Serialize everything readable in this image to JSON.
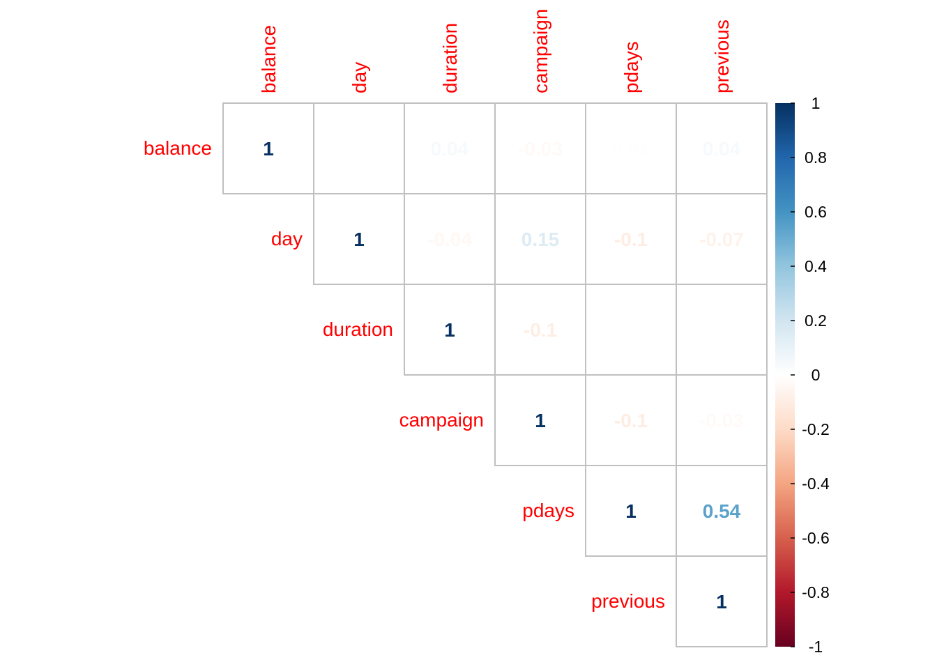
{
  "chart_data": {
    "type": "heatmap",
    "variables": [
      "balance",
      "day",
      "duration",
      "campaign",
      "pdays",
      "previous"
    ],
    "triangle": "upper",
    "matrix": [
      [
        1,
        0.0,
        0.04,
        -0.03,
        0.01,
        0.04
      ],
      [
        null,
        1,
        -0.04,
        0.15,
        -0.1,
        -0.07
      ],
      [
        null,
        null,
        1,
        -0.1,
        0.0,
        0.0
      ],
      [
        null,
        null,
        null,
        1,
        -0.1,
        -0.03
      ],
      [
        null,
        null,
        null,
        null,
        1,
        0.54
      ],
      [
        null,
        null,
        null,
        null,
        null,
        1
      ]
    ],
    "labels": [
      [
        "1",
        "0",
        "0.04",
        "-0.03",
        "0.01",
        "0.04"
      ],
      [
        null,
        "1",
        "-0.04",
        "0.15",
        "-0.1",
        "-0.07"
      ],
      [
        null,
        null,
        "1",
        "-0.1",
        "0",
        "0"
      ],
      [
        null,
        null,
        null,
        "1",
        "-0.1",
        "-0.03"
      ],
      [
        null,
        null,
        null,
        null,
        "1",
        "0.54"
      ],
      [
        null,
        null,
        null,
        null,
        null,
        "1"
      ]
    ],
    "colorbar": {
      "range": [
        -1,
        1
      ],
      "ticks": [
        "1",
        "0.8",
        "0.6",
        "0.4",
        "0.2",
        "0",
        "-0.2",
        "-0.4",
        "-0.6",
        "-0.8",
        "-1"
      ],
      "tick_values": [
        1,
        0.8,
        0.6,
        0.4,
        0.2,
        0,
        -0.2,
        -0.4,
        -0.6,
        -0.8,
        -1
      ],
      "colors": [
        "#67001F",
        "#B2182B",
        "#D6604D",
        "#F4A582",
        "#FDDBC7",
        "#FFFFFF",
        "#D1E5F0",
        "#92C5DE",
        "#4393C3",
        "#2166AC",
        "#053061"
      ]
    },
    "label_color": "#FF0000",
    "grid_color": "#C0C0C0"
  }
}
